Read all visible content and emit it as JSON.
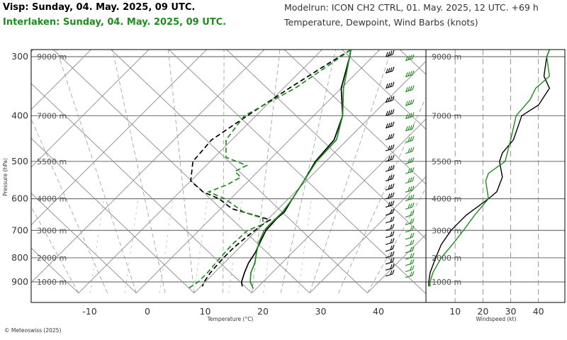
{
  "header": {
    "title_primary": "Visp: Sunday, 04. May. 2025, 09 UTC.",
    "title_secondary": "Interlaken: Sunday, 04. May. 2025, 09 UTC.",
    "model_run": "Modelrun: ICON CH2 CTRL, 01. May. 2025, 12 UTC. +69 h",
    "variables": "Temperature, Dewpoint, Wind Barbs (knots)"
  },
  "footer": {
    "credit": "© Meteoswiss (2025)"
  },
  "colors": {
    "visp": "#000000",
    "interlaken": "#1e8c1e",
    "grid": "#9a9a9a"
  },
  "chart_data": [
    {
      "type": "line",
      "name": "skew-t",
      "xlabel": "Temperature (°C)",
      "ylabel": "Pressure (hPa)",
      "xlim": [
        -20,
        47
      ],
      "ylim": [
        950,
        290
      ],
      "x_ticks": [
        -10,
        0,
        10,
        20,
        30,
        40
      ],
      "pressure_ticks": [
        300,
        400,
        500,
        600,
        700,
        800,
        900
      ],
      "altitude_labels": [
        {
          "p": 300,
          "label": "9000 m"
        },
        {
          "p": 400,
          "label": "7000 m"
        },
        {
          "p": 500,
          "label": "5500 m"
        },
        {
          "p": 600,
          "label": "4000 m"
        },
        {
          "p": 700,
          "label": "3000 m"
        },
        {
          "p": 800,
          "label": "2000 m"
        },
        {
          "p": 900,
          "label": "1000 m"
        }
      ],
      "series": [
        {
          "name": "Visp temperature",
          "station": "visp",
          "dash": false,
          "points": [
            [
              290,
              -5
            ],
            [
              300,
              -4
            ],
            [
              350,
              0
            ],
            [
              400,
              5
            ],
            [
              450,
              7.7
            ],
            [
              500,
              8.2
            ],
            [
              550,
              9.6
            ],
            [
              600,
              10.7
            ],
            [
              640,
              11.6
            ],
            [
              660,
              11.4
            ],
            [
              700,
              11.6
            ],
            [
              740,
              12.6
            ],
            [
              780,
              13.6
            ],
            [
              820,
              14.2
            ],
            [
              860,
              15.2
            ],
            [
              900,
              16.3
            ],
            [
              920,
              17.2
            ]
          ]
        },
        {
          "name": "Visp dewpoint",
          "station": "visp",
          "dash": true,
          "points": [
            [
              290,
              -5
            ],
            [
              310,
              -6.5
            ],
            [
              350,
              -9
            ],
            [
              400,
              -11.5
            ],
            [
              450,
              -13.5
            ],
            [
              500,
              -13
            ],
            [
              550,
              -10
            ],
            [
              580,
              -6
            ],
            [
              600,
              -2
            ],
            [
              630,
              2
            ],
            [
              650,
              7
            ],
            [
              665,
              10.5
            ],
            [
              680,
              10
            ],
            [
              720,
              9.4
            ],
            [
              760,
              9
            ],
            [
              800,
              9
            ],
            [
              860,
              9.3
            ],
            [
              900,
              9.8
            ],
            [
              920,
              10.3
            ]
          ]
        },
        {
          "name": "Interlaken temperature",
          "station": "interlaken",
          "dash": false,
          "points": [
            [
              290,
              -5
            ],
            [
              300,
              -4
            ],
            [
              350,
              0.4
            ],
            [
              400,
              5
            ],
            [
              450,
              8.1
            ],
            [
              500,
              8.4
            ],
            [
              550,
              9.6
            ],
            [
              600,
              10.7
            ],
            [
              640,
              11.3
            ],
            [
              680,
              11.2
            ],
            [
              700,
              11.3
            ],
            [
              740,
              12.4
            ],
            [
              780,
              13.8
            ],
            [
              820,
              15.3
            ],
            [
              860,
              16.3
            ],
            [
              900,
              17.8
            ],
            [
              930,
              19.5
            ]
          ]
        },
        {
          "name": "Interlaken dewpoint",
          "station": "interlaken",
          "dash": true,
          "points": [
            [
              290,
              -5
            ],
            [
              310,
              -6
            ],
            [
              350,
              -8
            ],
            [
              400,
              -12
            ],
            [
              450,
              -11
            ],
            [
              490,
              -8
            ],
            [
              510,
              -3
            ],
            [
              525,
              -4
            ],
            [
              540,
              -2
            ],
            [
              560,
              -3
            ],
            [
              580,
              -5
            ],
            [
              600,
              -1
            ],
            [
              640,
              4.5
            ],
            [
              660,
              9
            ],
            [
              680,
              10
            ],
            [
              700,
              8.4
            ],
            [
              750,
              8.2
            ],
            [
              800,
              8.4
            ],
            [
              860,
              8.8
            ],
            [
              900,
              8.8
            ],
            [
              930,
              8.2
            ]
          ]
        }
      ]
    },
    {
      "type": "line",
      "name": "windspeed-profile",
      "xlabel": "Windspeed (kt)",
      "xlim": [
        0,
        48
      ],
      "x_ticks": [
        10,
        20,
        30,
        40
      ],
      "series": [
        {
          "name": "Visp windspeed",
          "station": "visp",
          "points": [
            [
              290,
              44
            ],
            [
              300,
              43
            ],
            [
              330,
              42
            ],
            [
              350,
              44
            ],
            [
              380,
              40
            ],
            [
              400,
              34
            ],
            [
              450,
              31
            ],
            [
              480,
              27
            ],
            [
              500,
              26
            ],
            [
              540,
              27
            ],
            [
              580,
              25
            ],
            [
              600,
              22
            ],
            [
              650,
              14
            ],
            [
              700,
              8.5
            ],
            [
              750,
              5
            ],
            [
              800,
              3
            ],
            [
              860,
              1
            ],
            [
              900,
              0.5
            ],
            [
              920,
              0.5
            ]
          ]
        },
        {
          "name": "Interlaken windspeed",
          "station": "interlaken",
          "points": [
            [
              290,
              44
            ],
            [
              300,
              43
            ],
            [
              330,
              44
            ],
            [
              350,
              39
            ],
            [
              370,
              37
            ],
            [
              400,
              32
            ],
            [
              450,
              30
            ],
            [
              500,
              28
            ],
            [
              530,
              22
            ],
            [
              550,
              21
            ],
            [
              600,
              22
            ],
            [
              650,
              17
            ],
            [
              700,
              13
            ],
            [
              750,
              9
            ],
            [
              800,
              5
            ],
            [
              860,
              2
            ],
            [
              900,
              1
            ],
            [
              920,
              1
            ]
          ]
        }
      ]
    }
  ]
}
